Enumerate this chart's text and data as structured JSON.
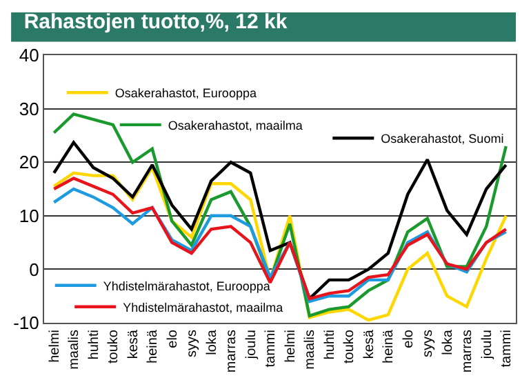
{
  "chart_data": {
    "type": "line",
    "title": "Rahastojen tuotto,%, 12 kk",
    "categories": [
      "helmi",
      "maalis",
      "huhti",
      "touko",
      "kesä",
      "heinä",
      "elo",
      "syys",
      "loka",
      "marras",
      "joulu",
      "tammi",
      "helmi",
      "maalis",
      "huhti",
      "touko",
      "kesä",
      "heinä",
      "elo",
      "syys",
      "loka",
      "marras",
      "joulu",
      "tammi"
    ],
    "series": [
      {
        "name": "Osakerahastot, Eurooppa",
        "color": "#ffd700",
        "values": [
          15.5,
          18,
          17.5,
          17.5,
          13,
          19,
          9,
          6,
          16,
          16,
          13,
          -2,
          10,
          -9,
          -8,
          -7.5,
          -9.5,
          -8.5,
          0,
          3,
          -5,
          -7,
          2,
          10
        ]
      },
      {
        "name": "Osakerahastot, maailma",
        "color": "#1a9a2e",
        "values": [
          25.5,
          29,
          28,
          27,
          20,
          22.5,
          9,
          4.5,
          13,
          14.5,
          8,
          -2,
          8.5,
          -8.7,
          -7.5,
          -7,
          -4,
          -2,
          7,
          9.5,
          0.5,
          0.5,
          8,
          23
        ]
      },
      {
        "name": "Osakerahastot, Suomi",
        "color": "#000000",
        "values": [
          18,
          23.7,
          19,
          17,
          13.5,
          19.5,
          12,
          7.5,
          16.5,
          20,
          18,
          3.5,
          5,
          -5.5,
          -2,
          -2,
          0,
          3,
          14,
          20.5,
          11,
          6.5,
          15,
          19.5
        ]
      },
      {
        "name": "Yhdistelmärahastot, Eurooppa",
        "color": "#1e9be0",
        "values": [
          12.5,
          15,
          13.5,
          11.5,
          8.5,
          11.5,
          5.5,
          3.5,
          10,
          10,
          8,
          -1.5,
          5,
          -6,
          -5,
          -5,
          -2,
          -2,
          5,
          7,
          1,
          -0.5,
          5,
          7
        ]
      },
      {
        "name": "Yhdistelmärahastot, maailma",
        "color": "#e8141c",
        "values": [
          15,
          17,
          15.5,
          14,
          10.5,
          11.5,
          5,
          3,
          7.5,
          8,
          5,
          -2.5,
          5,
          -5.5,
          -4.5,
          -4,
          -1.5,
          -1,
          4.5,
          6.5,
          1,
          0,
          5,
          7.5
        ]
      }
    ],
    "ylim": [
      -10,
      40
    ],
    "yticks": [
      -10,
      0,
      10,
      20,
      30,
      40
    ],
    "grid": "y",
    "legend": "bottom right",
    "line_style": "solid",
    "marker": "none"
  }
}
